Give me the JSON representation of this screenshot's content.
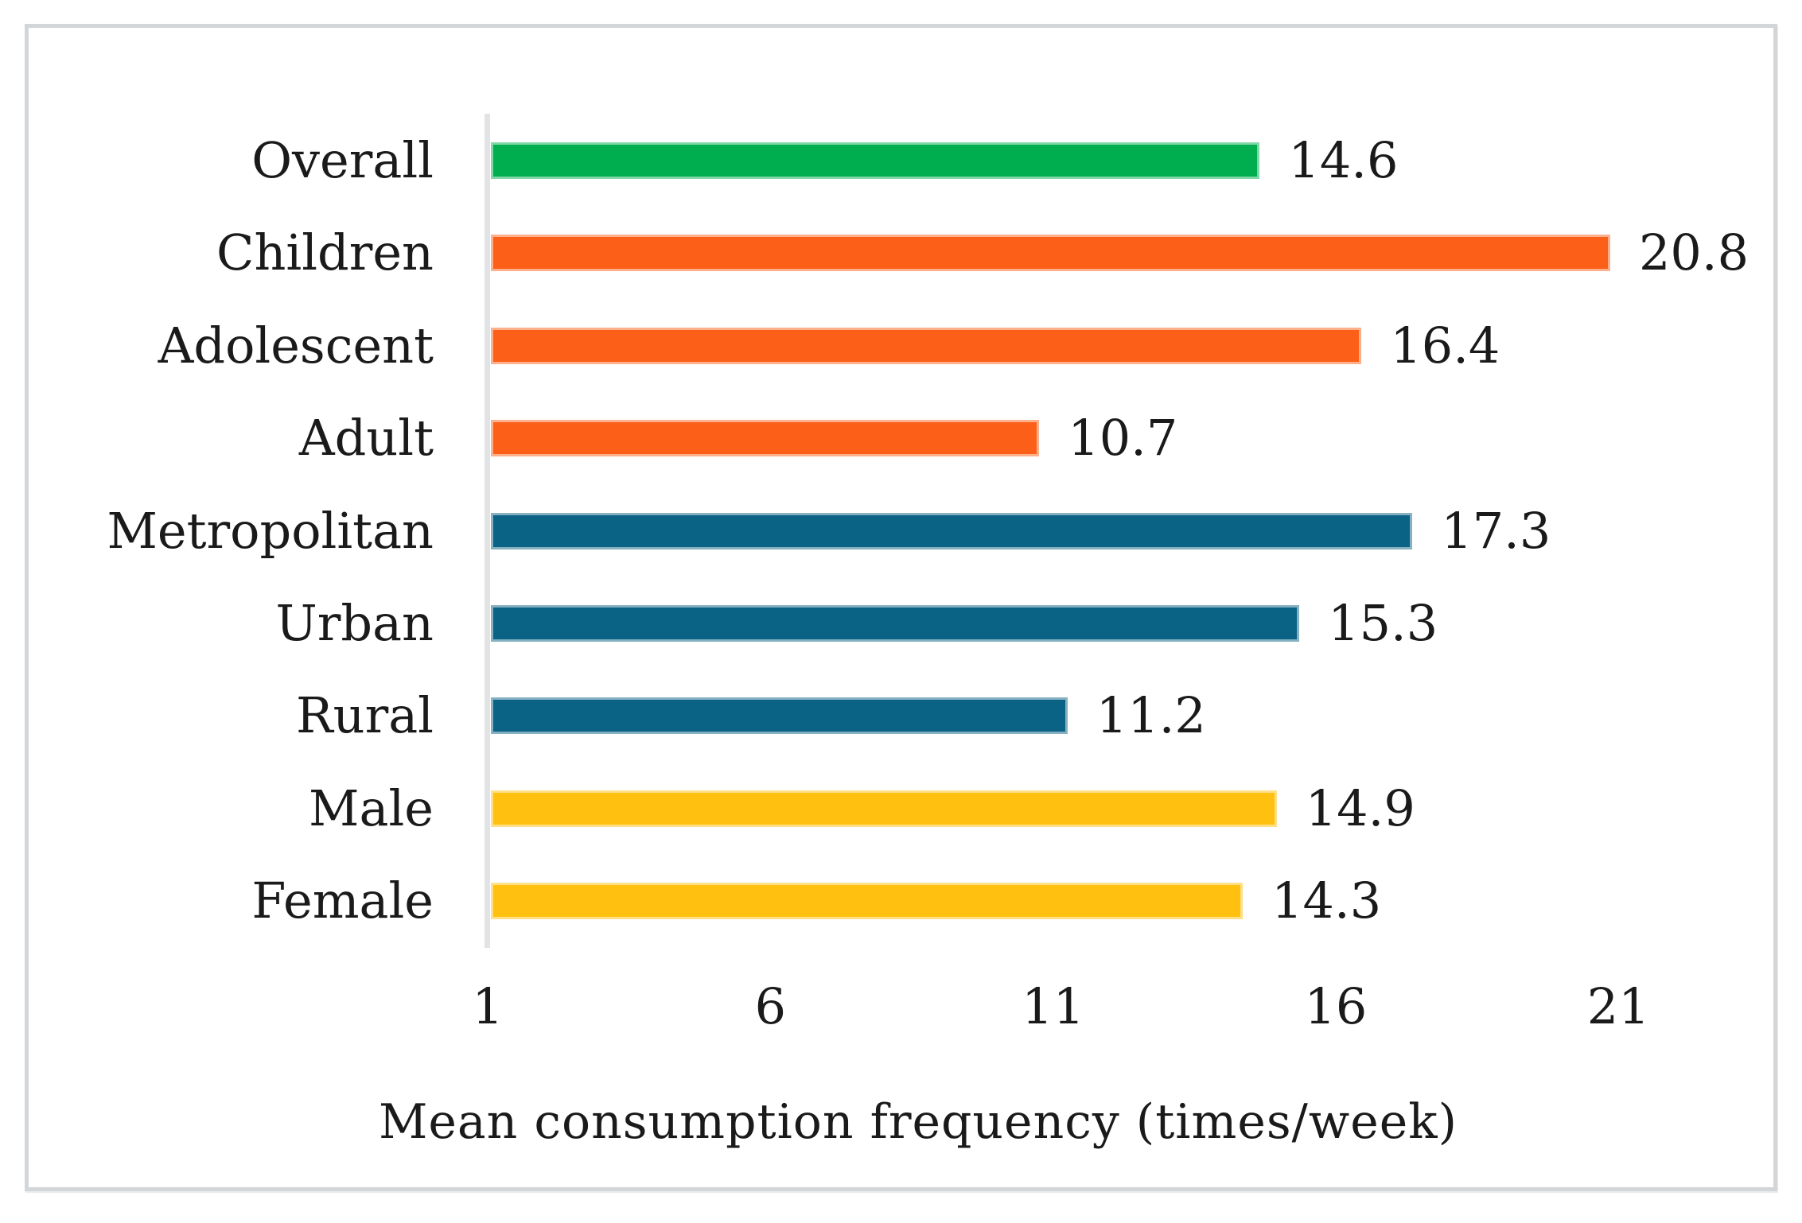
{
  "figure": {
    "background": "#ffffff",
    "frame_border_color": "#d2d6d9",
    "axis_line_color": "#e2e3e5",
    "text_color": "#1a1a1a"
  },
  "chart_data": {
    "type": "bar",
    "orientation": "horizontal",
    "title": "",
    "xlabel": "Mean consumption frequency (times/week)",
    "ylabel": "",
    "categories": [
      "Overall",
      "Children",
      "Adolescent",
      "Adult",
      "Metropolitan",
      "Urban",
      "Rural",
      "Male",
      "Female"
    ],
    "values": [
      14.6,
      20.8,
      16.4,
      10.7,
      17.3,
      15.3,
      11.2,
      14.9,
      14.3
    ],
    "data_labels": [
      "14.6",
      "20.8",
      "16.4",
      "10.7",
      "17.3",
      "15.3",
      "11.2",
      "14.9",
      "14.3"
    ],
    "bar_colors": [
      "#00ae4f",
      "#fc5f17",
      "#fc5f17",
      "#fc5f17",
      "#0a6285",
      "#0a6285",
      "#0a6285",
      "#ffc00f",
      "#ffc00f"
    ],
    "color_groups": {
      "overall": "#00ae4f",
      "age_groups": "#fc5f17",
      "regions": "#0a6285",
      "sex": "#ffc00f"
    },
    "xlim": [
      1,
      21
    ],
    "x_tick_values": [
      1,
      6,
      11,
      16,
      21
    ],
    "x_tick_labels": [
      "1",
      "6",
      "11",
      "16",
      "21"
    ],
    "grid": false,
    "legend": false,
    "data_labels_position": "outside-end"
  }
}
